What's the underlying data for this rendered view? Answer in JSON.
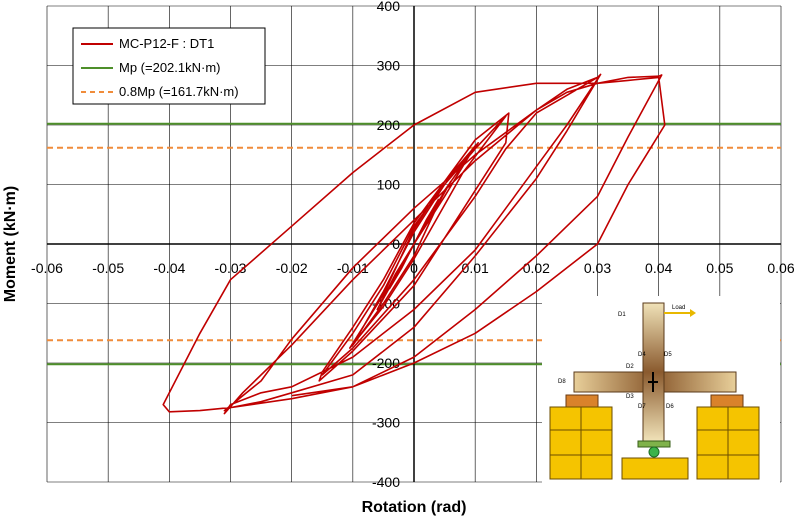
{
  "chart_data": {
    "type": "line",
    "xlabel": "Rotation (rad)",
    "ylabel": "Moment (kN·m)",
    "xlim": [
      -0.06,
      0.06
    ],
    "ylim": [
      -400,
      400
    ],
    "x_ticks": [
      "-0.06",
      "-0.05",
      "-0.04",
      "-0.03",
      "-0.02",
      "-0.01",
      "0",
      "0.01",
      "0.02",
      "0.03",
      "0.04",
      "0.05",
      "0.06"
    ],
    "y_ticks": [
      "-400",
      "-300",
      "-200",
      "-100",
      "0",
      "100",
      "200",
      "300",
      "400"
    ],
    "grid": true,
    "legend_position": "top-left",
    "legend": [
      {
        "label": "MC-P12-F : DT1",
        "color": "#c00000",
        "style": "solid"
      },
      {
        "label": "Mp (=202.1kN·m)",
        "color": "#4e8f2a",
        "style": "solid"
      },
      {
        "label": "0.8Mp (=161.7kN·m)",
        "color": "#f08c3a",
        "style": "dashed"
      }
    ],
    "reference_lines": [
      {
        "name": "Mp (=202.1kN·m)",
        "y": 202.1,
        "color": "#4e8f2a",
        "style": "solid"
      },
      {
        "name": "-Mp",
        "y": -202.1,
        "color": "#4e8f2a",
        "style": "solid"
      },
      {
        "name": "0.8Mp (=161.7kN·m)",
        "y": 161.7,
        "color": "#f08c3a",
        "style": "dashed"
      },
      {
        "name": "-0.8Mp",
        "y": -161.7,
        "color": "#f08c3a",
        "style": "dashed"
      }
    ],
    "series": [
      {
        "name": "MC-P12-F : DT1",
        "color": "#c00000",
        "x": [
          0,
          0.0015,
          0.003,
          0.0015,
          0,
          -0.0015,
          -0.003,
          -0.0015,
          0,
          0.002,
          0.004,
          0.002,
          0,
          -0.002,
          -0.004,
          -0.002,
          0,
          0.003,
          0.006,
          0.003,
          0,
          -0.003,
          -0.006,
          -0.003,
          0,
          0.005,
          0.01,
          0.005,
          0,
          -0.005,
          -0.01,
          -0.005,
          0,
          0.005,
          0.0105,
          0.005,
          0,
          -0.005,
          -0.0105,
          -0.005,
          0,
          0.008,
          0.015,
          0.01,
          0.005,
          0,
          -0.005,
          -0.01,
          -0.015,
          -0.01,
          0,
          0.005,
          0.01,
          0.015,
          0.0155,
          0.01,
          0.005,
          0,
          -0.005,
          -0.01,
          -0.015,
          -0.0155,
          -0.01,
          0,
          0.005,
          0.01,
          0.015,
          0.02,
          0.025,
          0.03,
          0.0305,
          0.025,
          0.02,
          0.01,
          0,
          -0.01,
          -0.02,
          -0.025,
          -0.03,
          -0.031,
          -0.025,
          -0.02,
          -0.01,
          0,
          0.01,
          0.02,
          0.025,
          0.03,
          0.0305,
          0.025,
          0.02,
          0.015,
          0.01,
          0,
          -0.01,
          -0.02,
          -0.025,
          -0.03,
          -0.031,
          -0.028,
          -0.02,
          -0.01,
          0,
          0.01,
          0.02,
          0.025,
          0.03,
          0.035,
          0.04,
          0.0405,
          0.035,
          0.03,
          0.02,
          0.01,
          0,
          -0.01,
          -0.02,
          -0.03,
          -0.035,
          -0.04,
          -0.041,
          -0.035,
          -0.03,
          -0.02,
          -0.01,
          0,
          0.01,
          0.02,
          0.03,
          0.035,
          0.04,
          0.041,
          0.035,
          0.03,
          0.02,
          0.01,
          0,
          -0.01,
          -0.02
        ],
        "y": [
          0,
          30,
          55,
          30,
          0,
          -30,
          -55,
          -30,
          0,
          35,
          75,
          40,
          0,
          -35,
          -75,
          -40,
          0,
          50,
          105,
          55,
          0,
          -50,
          -110,
          -55,
          0,
          80,
          165,
          100,
          20,
          -80,
          -170,
          -100,
          -20,
          90,
          170,
          105,
          25,
          -85,
          -175,
          -105,
          -25,
          120,
          215,
          160,
          100,
          30,
          -70,
          -150,
          -220,
          -175,
          -60,
          10,
          90,
          170,
          220,
          175,
          105,
          35,
          -60,
          -140,
          -215,
          -230,
          -180,
          -70,
          10,
          80,
          160,
          220,
          250,
          280,
          285,
          190,
          110,
          -20,
          -140,
          -220,
          -250,
          -265,
          -275,
          -280,
          -230,
          -160,
          -40,
          60,
          150,
          225,
          260,
          280,
          285,
          200,
          130,
          60,
          -10,
          -110,
          -190,
          -240,
          -250,
          -270,
          -285,
          -250,
          -170,
          -60,
          40,
          140,
          225,
          255,
          270,
          280,
          282,
          284,
          180,
          80,
          -20,
          -110,
          -190,
          -240,
          -260,
          -275,
          -280,
          -282,
          -270,
          -150,
          -60,
          30,
          120,
          200,
          255,
          270,
          270,
          275,
          280,
          200,
          100,
          0,
          -80,
          -150,
          -200,
          -240,
          -255
        ]
      }
    ]
  },
  "inset": {
    "caption_load": "Load",
    "labels": [
      "D1",
      "D2",
      "D3",
      "D4",
      "D5",
      "D6",
      "D7",
      "D8"
    ]
  }
}
